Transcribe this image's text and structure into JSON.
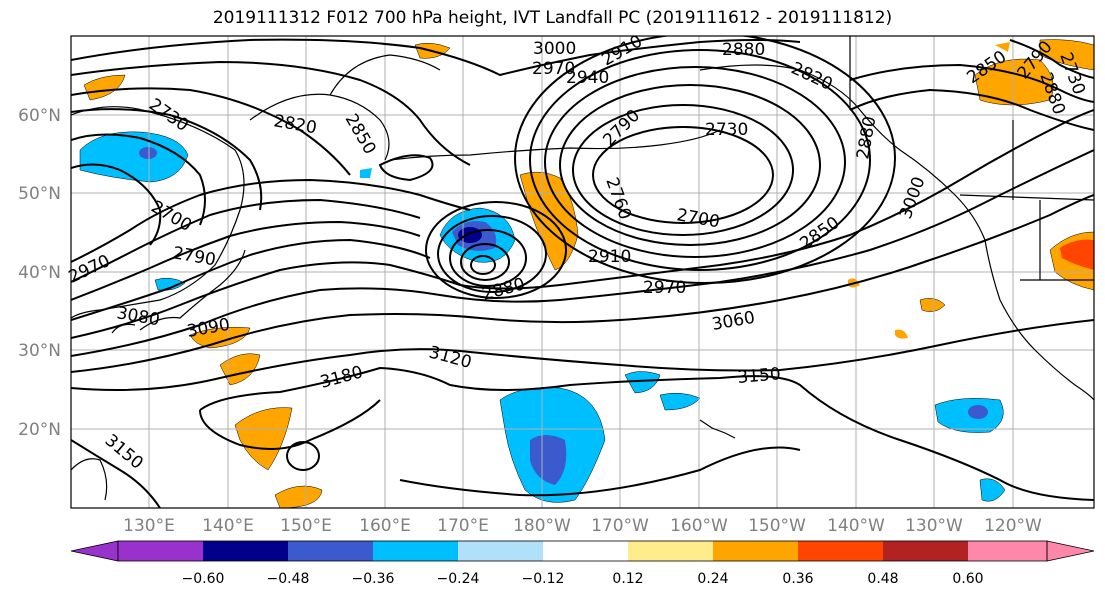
{
  "title": "2019111312 F012 700 hPa height, IVT Landfall PC (2019111612 - 2019111812)",
  "map": {
    "lat_labels": [
      "60°N",
      "50°N",
      "40°N",
      "30°N",
      "20°N"
    ],
    "lon_labels": [
      "130°E",
      "140°E",
      "150°E",
      "160°E",
      "170°E",
      "180°W",
      "170°W",
      "160°W",
      "150°W",
      "140°W",
      "130°W",
      "120°W"
    ],
    "contour_labels": [
      "3000",
      "2970",
      "2940",
      "2910",
      "2880",
      "2820",
      "2790",
      "2730",
      "2730",
      "2820",
      "2850",
      "2760",
      "2700",
      "2880",
      "3000",
      "2850",
      "2910",
      "2970",
      "3060",
      "3150",
      "3180",
      "3120",
      "3090",
      "3080",
      "2700",
      "2790",
      "2970",
      "2880",
      "3150",
      "2850",
      "2880",
      "2730",
      "2790"
    ],
    "colors": {
      "land_outline": "#000000",
      "grid": "#b0b0b0",
      "contour": "#000000"
    }
  },
  "colorbar": {
    "ticks": [
      "−0.60",
      "−0.48",
      "−0.36",
      "−0.24",
      "−0.12",
      "0.12",
      "0.24",
      "0.36",
      "0.48",
      "0.60"
    ],
    "colors": [
      "#9932cc",
      "#00008b",
      "#3a5acd",
      "#00bfff",
      "#b0e0fa",
      "#ffffff",
      "#ffec8b",
      "#ffa500",
      "#ff4500",
      "#b22222",
      "#ff88aa"
    ]
  }
}
